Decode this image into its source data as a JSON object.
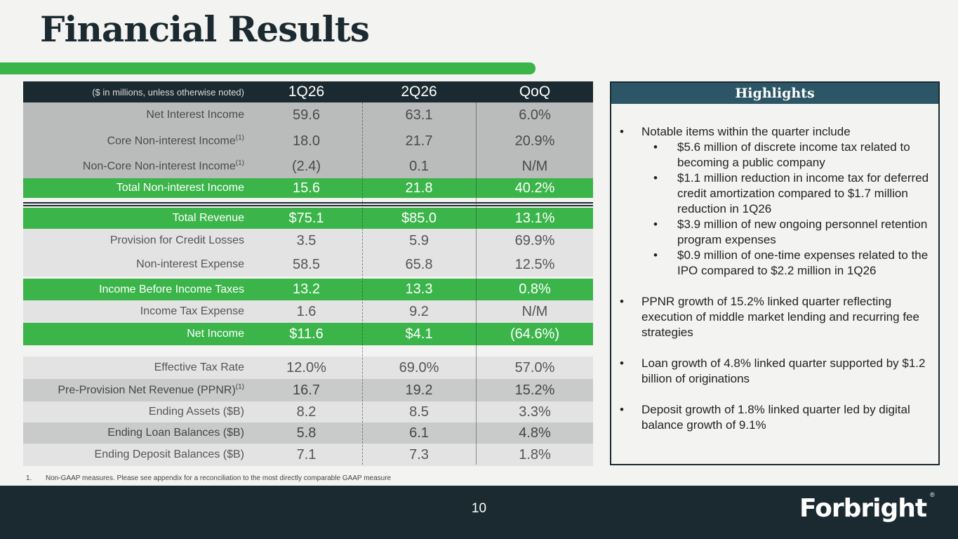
{
  "title": "Financial Results",
  "table": {
    "header": {
      "note": "($ in millions, unless otherwise noted)",
      "col1": "1Q26",
      "col2": "2Q26",
      "col3": "QoQ"
    },
    "rows": [
      {
        "label": "Net Interest Income",
        "sup": "",
        "v1": "59.6",
        "v2": "63.1",
        "v3": "6.0%"
      },
      {
        "label": "Core Non-interest Income",
        "sup": "(1)",
        "v1": "18.0",
        "v2": "21.7",
        "v3": "20.9%"
      },
      {
        "label": "Non-Core Non-interest Income",
        "sup": "(1)",
        "v1": "(2.4)",
        "v2": "0.1",
        "v3": "N/M"
      },
      {
        "label": "Total Non-interest Income",
        "sup": "",
        "v1": "15.6",
        "v2": "21.8",
        "v3": "40.2%"
      },
      {
        "label": "Total Revenue",
        "sup": "",
        "v1": "$75.1",
        "v2": "$85.0",
        "v3": "13.1%"
      },
      {
        "label": "Provision for Credit Losses",
        "sup": "",
        "v1": "3.5",
        "v2": "5.9",
        "v3": "69.9%"
      },
      {
        "label": "Non-interest Expense",
        "sup": "",
        "v1": "58.5",
        "v2": "65.8",
        "v3": "12.5%"
      },
      {
        "label": "Income Before Income Taxes",
        "sup": "",
        "v1": "13.2",
        "v2": "13.3",
        "v3": "0.8%"
      },
      {
        "label": "Income Tax Expense",
        "sup": "",
        "v1": "1.6",
        "v2": "9.2",
        "v3": "N/M"
      },
      {
        "label": "Net Income",
        "sup": "",
        "v1": "$11.6",
        "v2": "$4.1",
        "v3": "(64.6%)"
      },
      {
        "label": "Effective Tax Rate",
        "sup": "",
        "v1": "12.0%",
        "v2": "69.0%",
        "v3": "57.0%"
      },
      {
        "label": "Pre-Provision Net Revenue (PPNR)",
        "sup": "(1)",
        "v1": "16.7",
        "v2": "19.2",
        "v3": "15.2%"
      },
      {
        "label": "Ending Assets ($B)",
        "sup": "",
        "v1": "8.2",
        "v2": "8.5",
        "v3": "3.3%"
      },
      {
        "label": "Ending Loan Balances ($B)",
        "sup": "",
        "v1": "5.8",
        "v2": "6.1",
        "v3": "4.8%"
      },
      {
        "label": "Ending Deposit Balances ($B)",
        "sup": "",
        "v1": "7.1",
        "v2": "7.3",
        "v3": "1.8%"
      }
    ]
  },
  "footnote": {
    "num": "1.",
    "text": "Non-GAAP measures. Please see appendix for a reconciliation to the most directly comparable GAAP measure"
  },
  "highlights": {
    "heading": "Highlights",
    "bullets": [
      {
        "text": "Notable items within the quarter include",
        "sub": [
          "$5.6 million of discrete income tax related to becoming a public company",
          "$1.1 million reduction in income tax for deferred credit amortization compared to $1.7 million reduction in 1Q26",
          "$3.9 million of new ongoing personnel retention program expenses",
          "$0.9 million of one-time expenses related to the IPO compared to $2.2 million in 1Q26"
        ]
      },
      {
        "text": "PPNR growth of 15.2% linked quarter reflecting execution of middle market lending and recurring fee strategies",
        "sub": []
      },
      {
        "text": "Loan growth of 4.8% linked quarter supported by $1.2 billion of originations",
        "sub": []
      },
      {
        "text": "Deposit growth of 1.8% linked quarter led by digital balance growth of 9.1%",
        "sub": []
      }
    ],
    "bullet_char": "•"
  },
  "footer": {
    "page_number": "10",
    "logo_text": "Forbright",
    "registered": "®"
  },
  "colors": {
    "navy": "#1b2a30",
    "green": "#3bb54a",
    "teal": "#2c5565"
  }
}
